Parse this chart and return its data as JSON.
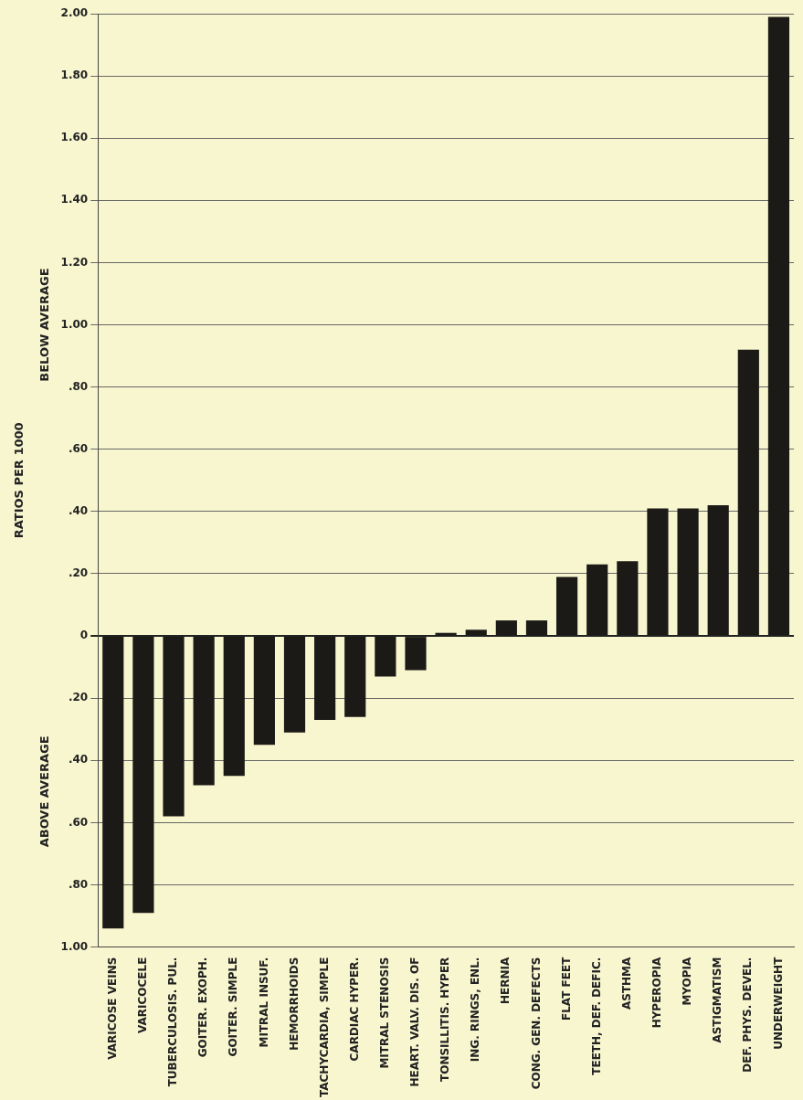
{
  "chart_data": {
    "type": "bar",
    "ylabel": "RATIOS PER 1000",
    "annotations": [
      "BELOW AVERAGE",
      "ABOVE AVERAGE"
    ],
    "categories": [
      "VARICOSE VEINS",
      "VARICOCELE",
      "TUBERCULOSIS. PUL.",
      "GOITER. EXOPH.",
      "GOITER. SIMPLE",
      "MITRAL INSUF.",
      "HEMORRHOIDS",
      "TACHYCARDIA, SIMPLE",
      "CARDIAC HYPER.",
      "MITRAL STENOSIS",
      "HEART. VALV. DIS. OF",
      "TONSILLITIS. HYPER",
      "ING. RINGS, ENL.",
      "HERNIA",
      "CONG. GEN. DEFECTS",
      "FLAT FEET",
      "TEETH, DEF. DEFIC.",
      "ASTHMA",
      "HYPEROPIA",
      "MYOPIA",
      "ASTIGMATISM",
      "DEF. PHYS. DEVEL.",
      "UNDERWEIGHT"
    ],
    "values": [
      -0.94,
      -0.89,
      -0.58,
      -0.48,
      -0.45,
      -0.35,
      -0.31,
      -0.27,
      -0.26,
      -0.13,
      -0.11,
      0.01,
      0.02,
      0.05,
      0.05,
      0.19,
      0.23,
      0.24,
      0.41,
      0.41,
      0.42,
      0.92,
      1.99
    ],
    "color": "#1c1a17",
    "ylim": [
      -1,
      2
    ],
    "yticks": [
      {
        "value": -1,
        "label": "1.00"
      },
      {
        "value": -0.8,
        "label": ".80"
      },
      {
        "value": -0.6,
        "label": ".60"
      },
      {
        "value": -0.4,
        "label": ".40"
      },
      {
        "value": -0.2,
        "label": ".20"
      },
      0,
      {
        "value": 0.2,
        "label": ".20"
      },
      {
        "value": 0.4,
        "label": ".40"
      },
      {
        "value": 0.6,
        "label": ".60"
      },
      {
        "value": 0.8,
        "label": ".80"
      },
      {
        "value": 1,
        "label": "1.00"
      },
      {
        "value": 1.2,
        "label": "1.20"
      },
      {
        "value": 1.4,
        "label": "1.40"
      },
      {
        "value": 1.6,
        "label": "1.60"
      },
      {
        "value": 1.8,
        "label": "1.80"
      },
      {
        "value": 2,
        "label": "2.00"
      }
    ],
    "grid": "y"
  }
}
